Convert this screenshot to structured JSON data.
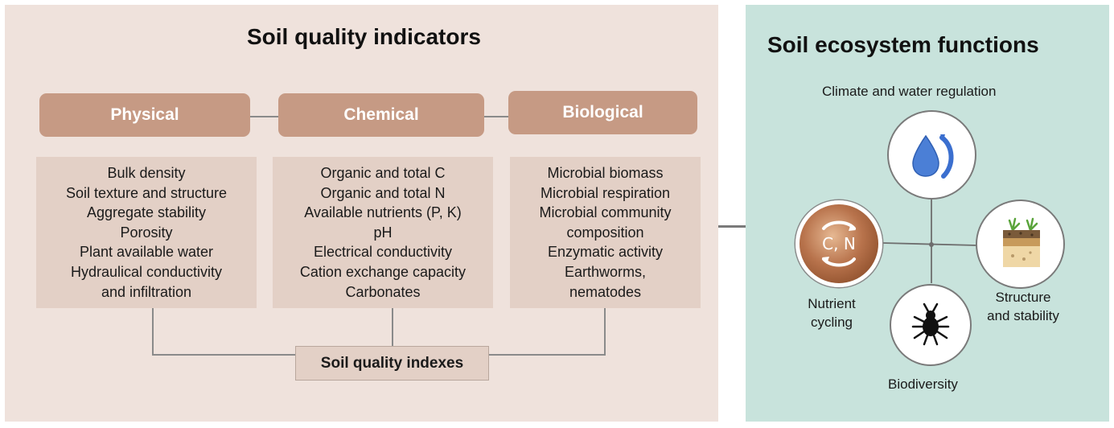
{
  "left_panel": {
    "title": "Soil quality indicators",
    "categories": [
      {
        "label": "Physical",
        "items": [
          "Bulk density",
          "Soil texture and structure",
          "Aggregate stability",
          "Porosity",
          "Plant available  water",
          "Hydraulical conductivity",
          "and infiltration"
        ]
      },
      {
        "label": "Chemical",
        "items": [
          "Organic and total C",
          "Organic and total N",
          "Available nutrients (P, K)",
          "pH",
          "Electrical conductivity",
          "Cation exchange capacity",
          "Carbonates"
        ]
      },
      {
        "label": "Biological",
        "items": [
          "Microbial biomass",
          "Microbial respiration",
          "Microbial community",
          "composition",
          "Enzymatic activity",
          "Earthworms,",
          "nematodes"
        ]
      }
    ],
    "index_label": "Soil quality indexes"
  },
  "right_panel": {
    "title": "Soil ecosystem functions",
    "functions": {
      "climate": "Climate and water regulation",
      "nutrient": [
        "Nutrient",
        "cycling"
      ],
      "nutrient_symbol": "C, N",
      "structure": [
        "Structure",
        "and stability"
      ],
      "biodiversity": "Biodiversity"
    }
  },
  "icons": {
    "climate": "water-drop-icon",
    "nutrient": "cycle-arrows-icon",
    "structure": "soil-profile-icon",
    "biodiversity": "soil-organism-icon"
  },
  "colors": {
    "left_background": "#efe2dc",
    "right_background": "#c8e3dc",
    "category_fill": "#c69a84",
    "box_fill": "#e3d0c6",
    "drop_blue": "#4b7fd6"
  }
}
